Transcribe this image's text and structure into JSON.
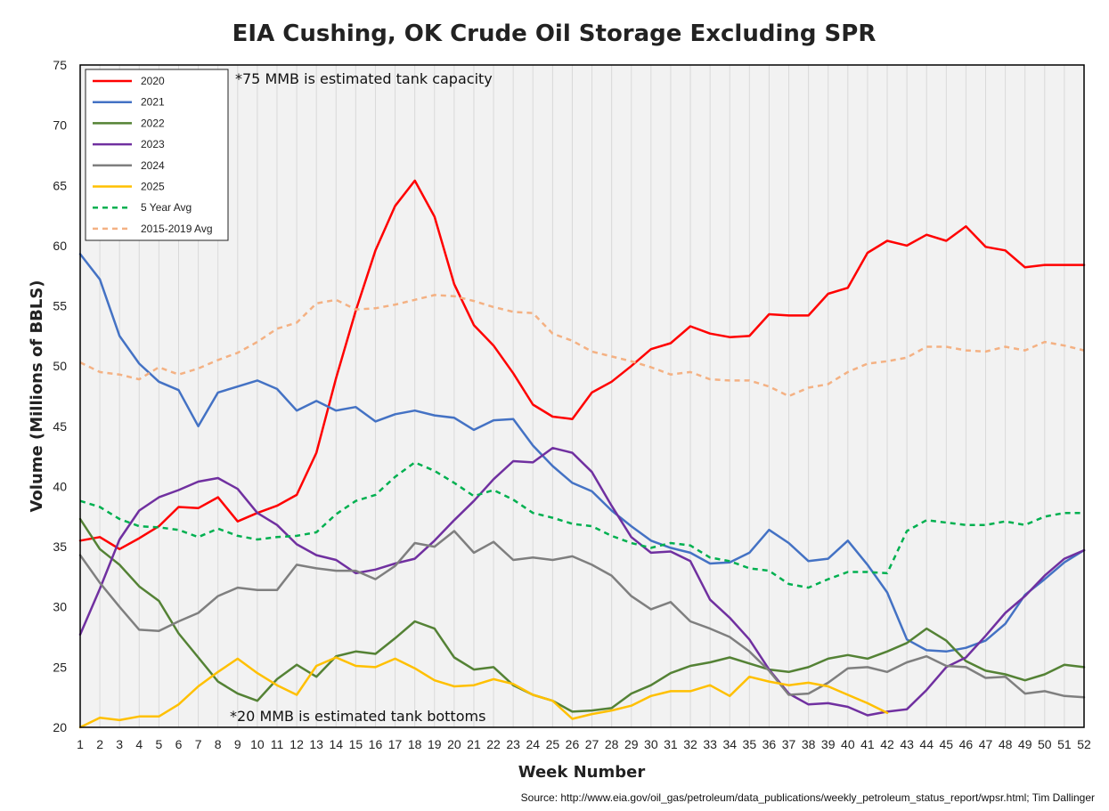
{
  "chart_data": {
    "type": "line",
    "title": "EIA Cushing, OK Crude Oil Storage Excluding SPR",
    "xlabel": "Week Number",
    "ylabel": "Volume (Millions of BBLS)",
    "xlim": [
      1,
      52
    ],
    "ylim": [
      20,
      75
    ],
    "y_ticks": [
      20,
      25,
      30,
      35,
      40,
      45,
      50,
      55,
      60,
      65,
      70,
      75
    ],
    "grid": "vertical",
    "legend_position": "top-left",
    "annotations": [
      "*75 MMB is estimated tank capacity",
      "*20 MMB is estimated tank bottoms"
    ],
    "source": "Source: http://www.eia.gov/oil_gas/petroleum/data_publications/weekly_petroleum_status_report/wpsr.html; Tim Dallinger",
    "series": [
      {
        "name": "2020",
        "color": "#ff0000",
        "dashed": false,
        "values": [
          35.5,
          35.8,
          34.8,
          35.7,
          36.7,
          38.3,
          38.2,
          39.1,
          37.1,
          37.8,
          38.4,
          39.3,
          42.8,
          49.0,
          54.6,
          59.6,
          63.3,
          65.4,
          62.4,
          56.8,
          53.4,
          51.7,
          49.4,
          46.8,
          45.8,
          45.6,
          47.8,
          48.7,
          50.0,
          51.4,
          51.9,
          53.3,
          52.7,
          52.4,
          52.5,
          54.3,
          54.2,
          54.2,
          56.0,
          56.5,
          59.4,
          60.4,
          60.0,
          60.9,
          60.4,
          61.6,
          59.9,
          59.6,
          58.2,
          58.4,
          58.4,
          58.4
        ]
      },
      {
        "name": "2021",
        "color": "#4472c4",
        "dashed": false,
        "values": [
          59.3,
          57.2,
          52.5,
          50.2,
          48.7,
          48.0,
          45.0,
          47.8,
          48.3,
          48.8,
          48.1,
          46.3,
          47.1,
          46.3,
          46.6,
          45.4,
          46.0,
          46.3,
          45.9,
          45.7,
          44.7,
          45.5,
          45.6,
          43.4,
          41.7,
          40.3,
          39.6,
          38.0,
          36.7,
          35.5,
          34.9,
          34.5,
          33.6,
          33.7,
          34.5,
          36.4,
          35.3,
          33.8,
          34.0,
          35.5,
          33.5,
          31.2,
          27.3,
          26.4,
          26.3,
          26.6,
          27.2,
          28.6,
          31.0,
          32.3,
          33.7,
          34.7
        ]
      },
      {
        "name": "2022",
        "color": "#548235",
        "dashed": false,
        "values": [
          37.3,
          34.8,
          33.5,
          31.7,
          30.5,
          27.8,
          25.8,
          23.8,
          22.8,
          22.2,
          24.0,
          25.2,
          24.2,
          25.9,
          26.3,
          26.1,
          27.4,
          28.8,
          28.2,
          25.8,
          24.8,
          25.0,
          23.5,
          22.7,
          22.2,
          21.3,
          21.4,
          21.6,
          22.8,
          23.5,
          24.5,
          25.1,
          25.4,
          25.8,
          25.3,
          24.8,
          24.6,
          25.0,
          25.7,
          26.0,
          25.7,
          26.3,
          27.0,
          28.2,
          27.2,
          25.5,
          24.7,
          24.4,
          23.9,
          24.4,
          25.2,
          25.0
        ]
      },
      {
        "name": "2023",
        "color": "#7030a0",
        "dashed": false,
        "values": [
          27.7,
          31.5,
          35.6,
          38.0,
          39.1,
          39.7,
          40.4,
          40.7,
          39.8,
          37.8,
          36.8,
          35.2,
          34.3,
          33.9,
          32.8,
          33.1,
          33.6,
          34.0,
          35.5,
          37.2,
          38.8,
          40.6,
          42.1,
          42.0,
          43.2,
          42.8,
          41.2,
          38.4,
          35.8,
          34.5,
          34.6,
          33.8,
          30.6,
          29.1,
          27.3,
          24.8,
          22.8,
          21.9,
          22.0,
          21.7,
          21.0,
          21.3,
          21.5,
          23.1,
          25.0,
          25.8,
          27.6,
          29.5,
          30.9,
          32.6,
          34.0,
          34.7
        ]
      },
      {
        "name": "2024",
        "color": "#7f7f7f",
        "dashed": false,
        "values": [
          34.3,
          32.0,
          30.0,
          28.1,
          28.0,
          28.8,
          29.5,
          30.9,
          31.6,
          31.4,
          31.4,
          33.5,
          33.2,
          33.0,
          33.0,
          32.3,
          33.4,
          35.3,
          35.0,
          36.3,
          34.5,
          35.4,
          33.9,
          34.1,
          33.9,
          34.2,
          33.5,
          32.6,
          30.9,
          29.8,
          30.4,
          28.8,
          28.2,
          27.5,
          26.3,
          24.7,
          22.7,
          22.8,
          23.7,
          24.9,
          25.0,
          24.6,
          25.4,
          25.9,
          25.1,
          25.0,
          24.1,
          24.2,
          22.8,
          23.0,
          22.6,
          22.5
        ]
      },
      {
        "name": "2025",
        "color": "#ffc000",
        "dashed": false,
        "values": [
          20.0,
          20.8,
          20.6,
          20.9,
          20.9,
          21.9,
          23.4,
          24.6,
          25.7,
          24.5,
          23.5,
          22.7,
          25.1,
          25.8,
          25.1,
          25.0,
          25.7,
          24.9,
          23.9,
          23.4,
          23.5,
          24.0,
          23.6,
          22.7,
          22.2,
          20.7,
          21.1,
          21.4,
          21.8,
          22.6,
          23.0,
          23.0,
          23.5,
          22.6,
          24.2,
          23.8,
          23.5,
          23.7,
          23.4,
          22.7,
          22.0,
          21.2
        ]
      },
      {
        "name": "5 Year Avg",
        "color": "#00b050",
        "dashed": true,
        "values": [
          38.8,
          38.3,
          37.3,
          36.7,
          36.6,
          36.4,
          35.8,
          36.5,
          35.9,
          35.6,
          35.8,
          35.9,
          36.2,
          37.7,
          38.8,
          39.3,
          40.8,
          42.0,
          41.3,
          40.3,
          39.2,
          39.7,
          38.9,
          37.8,
          37.4,
          36.9,
          36.7,
          35.9,
          35.3,
          34.9,
          35.3,
          35.1,
          34.1,
          33.8,
          33.2,
          33.0,
          31.9,
          31.6,
          32.3,
          32.9,
          32.9,
          32.8,
          36.3,
          37.2,
          37.0,
          36.8,
          36.8,
          37.1,
          36.8,
          37.5,
          37.8,
          37.8
        ]
      },
      {
        "name": "2015-2019 Avg",
        "color": "#f4b183",
        "dashed": true,
        "values": [
          50.3,
          49.5,
          49.3,
          48.9,
          49.9,
          49.3,
          49.8,
          50.5,
          51.1,
          52.0,
          53.1,
          53.6,
          55.2,
          55.5,
          54.7,
          54.8,
          55.1,
          55.5,
          55.9,
          55.8,
          55.4,
          54.9,
          54.5,
          54.4,
          52.7,
          52.1,
          51.2,
          50.8,
          50.4,
          49.9,
          49.3,
          49.5,
          48.9,
          48.8,
          48.8,
          48.3,
          47.5,
          48.2,
          48.5,
          49.5,
          50.2,
          50.4,
          50.7,
          51.6,
          51.6,
          51.3,
          51.2,
          51.6,
          51.3,
          52.0,
          51.7,
          51.3
        ]
      }
    ]
  }
}
